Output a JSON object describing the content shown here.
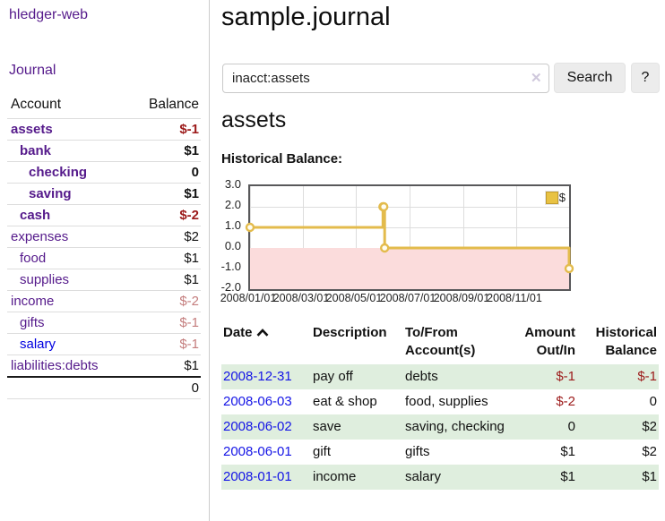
{
  "colors": {
    "link_visited": "#551a8b",
    "link_unvisited": "#0000e0",
    "negative_strong": "#9c1a1a",
    "negative_soft": "#c47d7d",
    "row_highlight_green": "#dfeede",
    "chart_line_gold": "#e3bb4c",
    "chart_negative_fill": "#fbdcdc",
    "chart_zero_line": "#7b0b0b"
  },
  "sidebar": {
    "brand": "hledger-web",
    "nav": {
      "journal": "Journal"
    },
    "accounts_table": {
      "headers": {
        "account": "Account",
        "balance": "Balance"
      },
      "rows": [
        {
          "name": "assets",
          "depth": 0,
          "bold": true,
          "balance": "$-1",
          "neg": "strong"
        },
        {
          "name": "bank",
          "depth": 1,
          "bold": true,
          "balance": "$1"
        },
        {
          "name": "checking",
          "depth": 2,
          "bold": true,
          "balance": "0"
        },
        {
          "name": "saving",
          "depth": 2,
          "bold": true,
          "balance": "$1"
        },
        {
          "name": "cash",
          "depth": 1,
          "bold": true,
          "balance": "$-2",
          "neg": "strong"
        },
        {
          "name": "expenses",
          "depth": 0,
          "bold": false,
          "balance": "$2"
        },
        {
          "name": "food",
          "depth": 1,
          "bold": false,
          "balance": "$1"
        },
        {
          "name": "supplies",
          "depth": 1,
          "bold": false,
          "balance": "$1"
        },
        {
          "name": "income",
          "depth": 0,
          "bold": false,
          "balance": "$-2",
          "neg": "soft"
        },
        {
          "name": "gifts",
          "depth": 1,
          "bold": false,
          "balance": "$-1",
          "neg": "soft"
        },
        {
          "name": "salary",
          "depth": 1,
          "bold": false,
          "balance": "$-1",
          "neg": "soft",
          "link": "unvisited"
        },
        {
          "name": "liabilities:debts",
          "depth": 0,
          "bold": false,
          "balance": "$1"
        }
      ],
      "total": "0"
    }
  },
  "header": {
    "title": "sample.journal"
  },
  "search": {
    "value": "inacct:assets",
    "clear_icon": "✕",
    "button_label": "Search",
    "help_label": "?"
  },
  "account_page": {
    "heading": "assets",
    "chart_label": "Historical Balance:"
  },
  "chart_data": {
    "type": "line",
    "title": "Historical Balance",
    "step": "after",
    "legend": [
      "$"
    ],
    "legend_position": "top-right",
    "grid": true,
    "ylim": [
      -2,
      3
    ],
    "y_ticks": [
      3.0,
      2.0,
      1.0,
      0.0,
      -1.0,
      -2.0
    ],
    "x_range": [
      "2008-01-01",
      "2008-12-31"
    ],
    "x_tick_dates": [
      "2008-01-01",
      "2008-03-01",
      "2008-05-01",
      "2008-07-01",
      "2008-09-01",
      "2008-11-01"
    ],
    "x_ticks": [
      "2008/01/01",
      "2008/03/01",
      "2008/05/01",
      "2008/07/01",
      "2008/09/01",
      "2008/11/01"
    ],
    "negative_region_shaded": true,
    "series": [
      {
        "name": "$",
        "points": [
          [
            "2008-01-01",
            1
          ],
          [
            "2008-06-01",
            2
          ],
          [
            "2008-06-02",
            2
          ],
          [
            "2008-06-03",
            0
          ],
          [
            "2008-12-31",
            -1
          ]
        ]
      }
    ]
  },
  "register_table": {
    "sort_column": "date",
    "sort_direction": "ascending",
    "headers": {
      "date": "Date",
      "description": "Description",
      "tofrom_line1": "To/From",
      "tofrom_line2": "Account(s)",
      "amount_line1": "Amount",
      "amount_line2": "Out/In",
      "balance_line1": "Historical",
      "balance_line2": "Balance"
    },
    "rows": [
      {
        "date": "2008-12-31",
        "description": "pay off",
        "accounts": "debts",
        "amount": "$-1",
        "balance": "$-1"
      },
      {
        "date": "2008-06-03",
        "description": "eat & shop",
        "accounts": "food, supplies",
        "amount": "$-2",
        "balance": "0"
      },
      {
        "date": "2008-06-02",
        "description": "save",
        "accounts": "saving, checking",
        "amount": "0",
        "balance": "$2"
      },
      {
        "date": "2008-06-01",
        "description": "gift",
        "accounts": "gifts",
        "amount": "$1",
        "balance": "$2"
      },
      {
        "date": "2008-01-01",
        "description": "income",
        "accounts": "salary",
        "amount": "$1",
        "balance": "$1"
      }
    ]
  }
}
